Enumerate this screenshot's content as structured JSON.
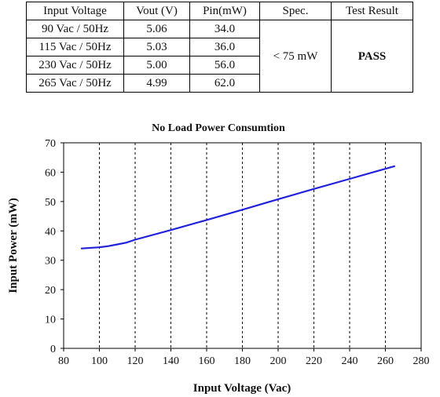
{
  "table": {
    "headers": [
      "Input Voltage",
      "Vout (V)",
      "Pin(mW)",
      "Spec.",
      "Test Result"
    ],
    "rows": [
      [
        "90 Vac / 50Hz",
        "5.06",
        "34.0"
      ],
      [
        "115 Vac / 50Hz",
        "5.03",
        "36.0"
      ],
      [
        "230 Vac / 50Hz",
        "5.00",
        "56.0"
      ],
      [
        "265 Vac / 50Hz",
        "4.99",
        "62.0"
      ]
    ],
    "spec": "< 75 mW",
    "result": "PASS"
  },
  "chart_data": {
    "type": "line",
    "title": "No Load Power Consumtion",
    "xlabel": "Input Voltage (Vac)",
    "ylabel": "Input Power (mW)",
    "xlim": [
      80,
      280
    ],
    "ylim": [
      0,
      70
    ],
    "xticks": [
      80,
      100,
      120,
      140,
      160,
      180,
      200,
      220,
      240,
      260,
      280
    ],
    "yticks": [
      0,
      10,
      20,
      30,
      40,
      50,
      60,
      70
    ],
    "grid": "vertical dashed",
    "legend": "none",
    "series": [
      {
        "color": "#2222dd",
        "x": [
          90,
          100,
          105,
          110,
          115,
          120,
          140,
          160,
          180,
          200,
          220,
          240,
          255,
          265
        ],
        "y": [
          34.0,
          34.4,
          34.8,
          35.4,
          36.0,
          37.0,
          40.3,
          43.7,
          47.2,
          50.8,
          54.3,
          57.7,
          60.3,
          62.0
        ]
      }
    ]
  }
}
